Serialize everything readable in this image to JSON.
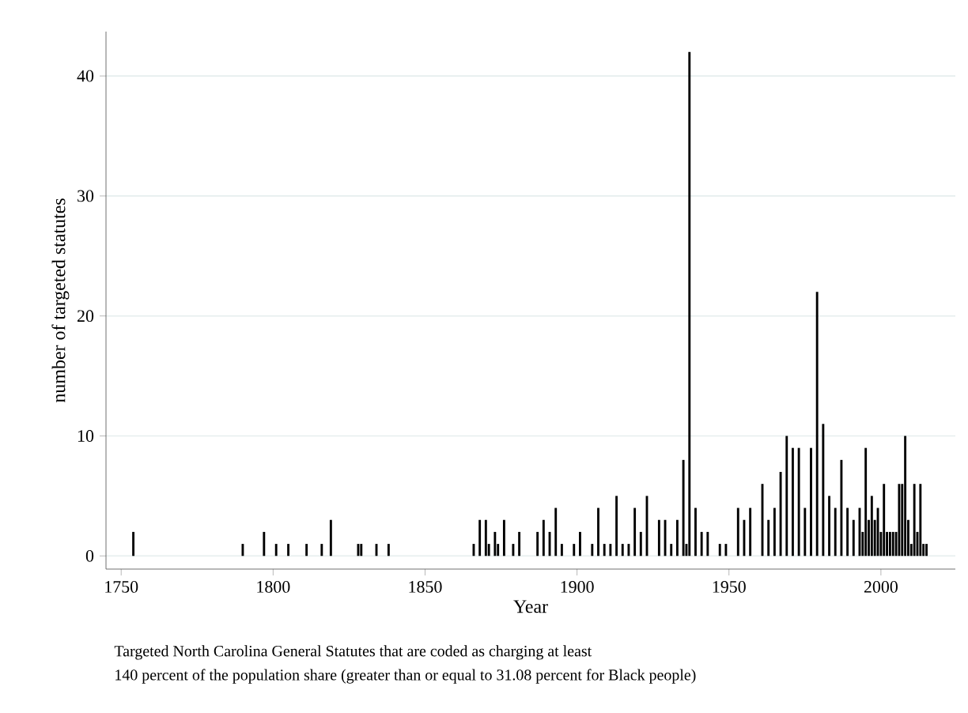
{
  "chart_data": {
    "type": "bar",
    "xlabel": "Year",
    "ylabel": "number of targeted statutes",
    "x": [
      1754,
      1790,
      1797,
      1801,
      1805,
      1811,
      1816,
      1819,
      1828,
      1829,
      1834,
      1838,
      1866,
      1868,
      1870,
      1871,
      1873,
      1874,
      1876,
      1879,
      1881,
      1887,
      1889,
      1891,
      1893,
      1895,
      1899,
      1901,
      1905,
      1907,
      1909,
      1911,
      1913,
      1915,
      1917,
      1919,
      1921,
      1923,
      1927,
      1929,
      1931,
      1933,
      1935,
      1936,
      1937,
      1939,
      1941,
      1943,
      1947,
      1949,
      1953,
      1955,
      1957,
      1961,
      1963,
      1965,
      1967,
      1969,
      1971,
      1973,
      1975,
      1977,
      1979,
      1981,
      1983,
      1985,
      1987,
      1989,
      1991,
      1993,
      1994,
      1995,
      1996,
      1997,
      1998,
      1999,
      2000,
      2001,
      2002,
      2003,
      2004,
      2005,
      2006,
      2007,
      2008,
      2009,
      2010,
      2011,
      2012,
      2013,
      2014,
      2015
    ],
    "values": [
      2,
      1,
      2,
      1,
      1,
      1,
      1,
      3,
      1,
      1,
      1,
      1,
      1,
      3,
      3,
      1,
      2,
      1,
      3,
      1,
      2,
      2,
      3,
      2,
      4,
      1,
      1,
      2,
      1,
      4,
      1,
      1,
      5,
      1,
      1,
      4,
      2,
      5,
      3,
      3,
      1,
      3,
      8,
      1,
      42,
      4,
      2,
      2,
      1,
      1,
      4,
      3,
      4,
      6,
      3,
      4,
      7,
      10,
      9,
      9,
      4,
      9,
      22,
      11,
      5,
      4,
      8,
      4,
      3,
      4,
      2,
      9,
      3,
      5,
      3,
      4,
      2,
      6,
      2,
      2,
      2,
      2,
      6,
      6,
      10,
      3,
      1,
      6,
      2,
      6,
      1,
      1
    ],
    "color": "#000000",
    "xlim": [
      1745,
      2024.5
    ],
    "ylim": [
      -1.1,
      43.7
    ],
    "xticks": [
      1750,
      1800,
      1850,
      1900,
      1950,
      2000
    ],
    "yticks": [
      0,
      10,
      20,
      30,
      40
    ],
    "grid": "y",
    "annotations": [
      "Targeted North Carolina General Statutes that are coded as charging at least",
      "140 percent of the population share (greater than or equal to 31.08 percent for Black people)"
    ]
  }
}
